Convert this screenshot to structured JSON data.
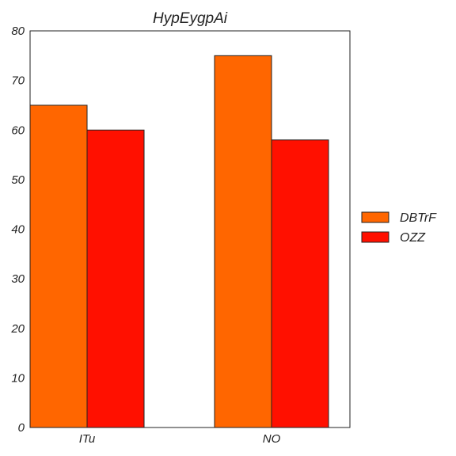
{
  "chart_data": {
    "type": "bar",
    "title": "HypEygpAi",
    "xlabel": "",
    "ylabel": "",
    "categories": [
      "ITu",
      "NO"
    ],
    "series": [
      {
        "name": "DBTrF",
        "values": [
          65,
          75
        ],
        "color": "#ff6600"
      },
      {
        "name": "OZZ",
        "values": [
          60,
          58
        ],
        "color": "#ff1000"
      }
    ],
    "ylim": [
      0,
      80
    ],
    "yticks": [
      0,
      10,
      20,
      30,
      40,
      50,
      60,
      70,
      80
    ],
    "grid": false,
    "legend_position": "right"
  }
}
